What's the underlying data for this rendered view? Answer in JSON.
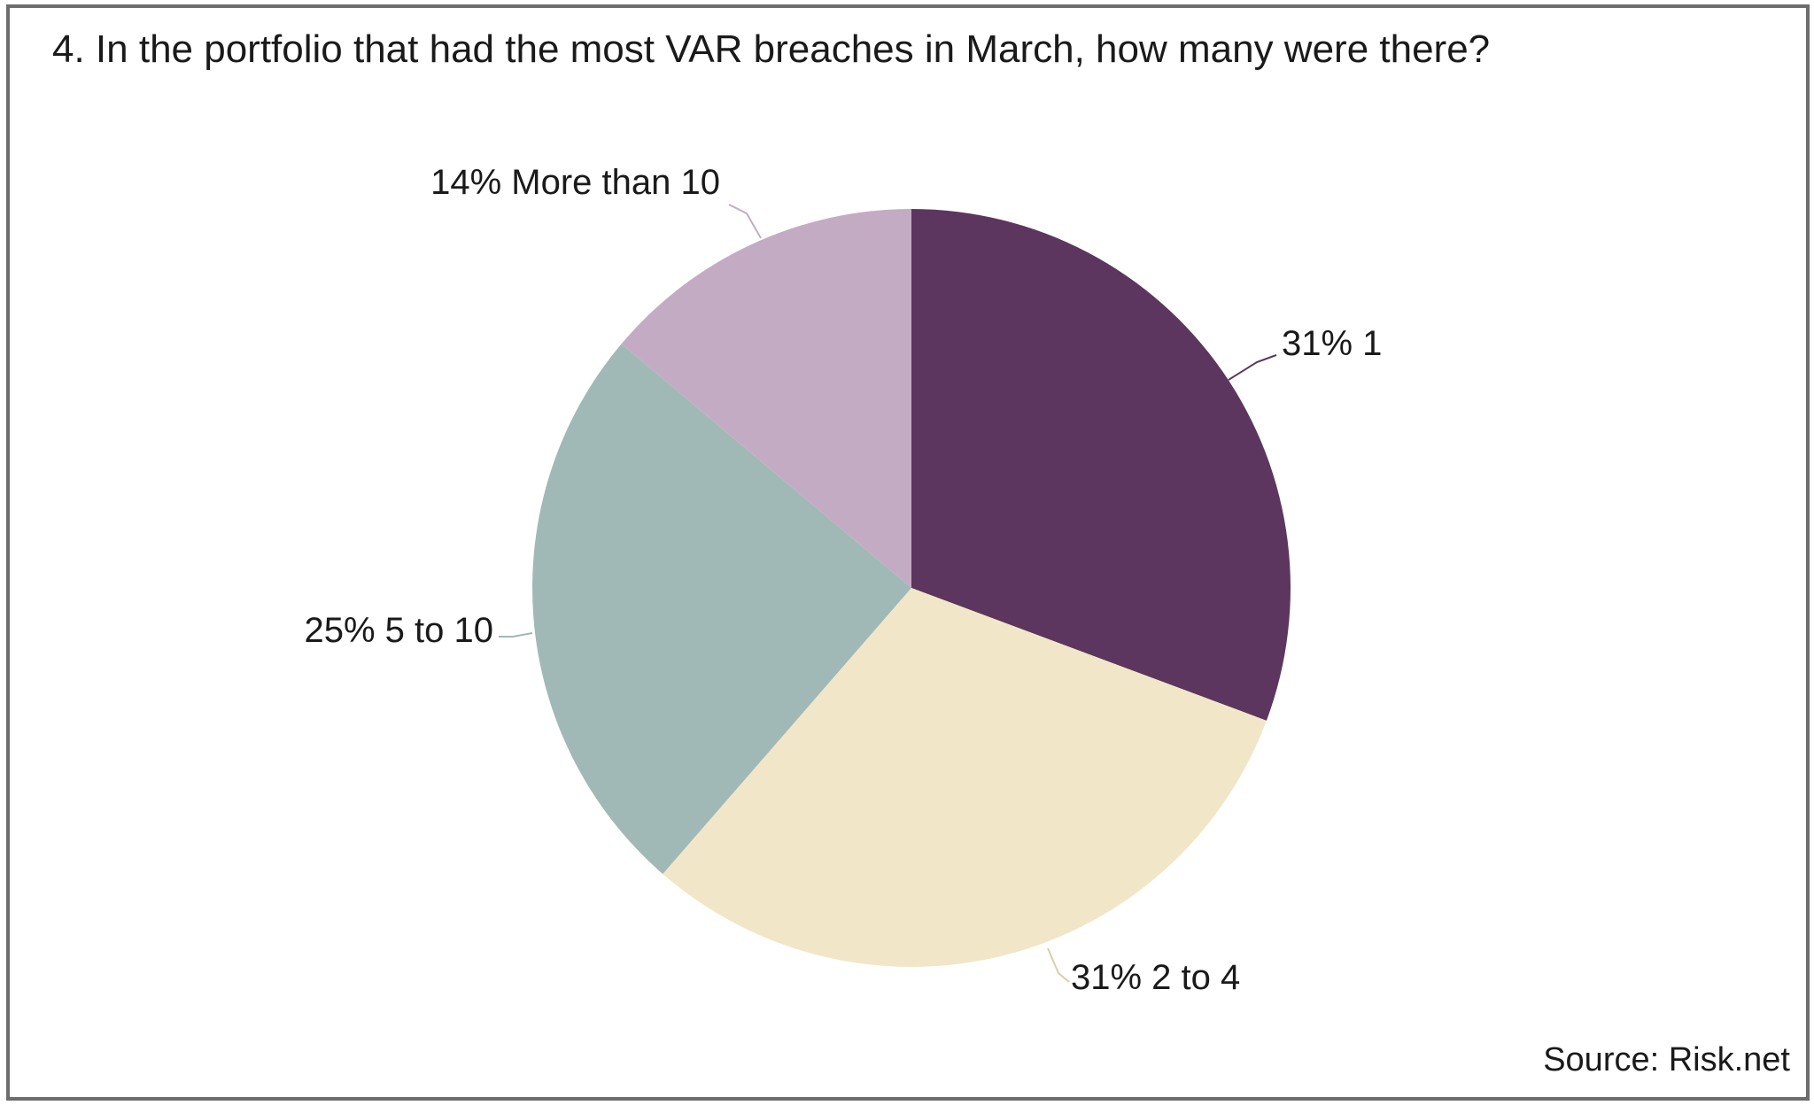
{
  "title": "4. In the portfolio that had the most VAR breaches in March, how many were there?",
  "source": "Source: Risk.net",
  "chart_data": {
    "type": "pie",
    "title": "4. In the portfolio that had the most VAR breaches in March, how many were there?",
    "start_angle_deg": 0,
    "direction": "clockwise",
    "slices": [
      {
        "label": "1",
        "value": 31,
        "display": "31% 1",
        "color": "#5c365e"
      },
      {
        "label": "2 to 4",
        "value": 31,
        "display": "31% 2 to 4",
        "color": "#f1e7c8"
      },
      {
        "label": "5 to 10",
        "value": 25,
        "display": "25% 5 to 10",
        "color": "#a1b9b6"
      },
      {
        "label": "More than 10",
        "value": 14,
        "display": "14% More than 10",
        "color": "#c4abc4"
      }
    ],
    "legend": "none"
  }
}
